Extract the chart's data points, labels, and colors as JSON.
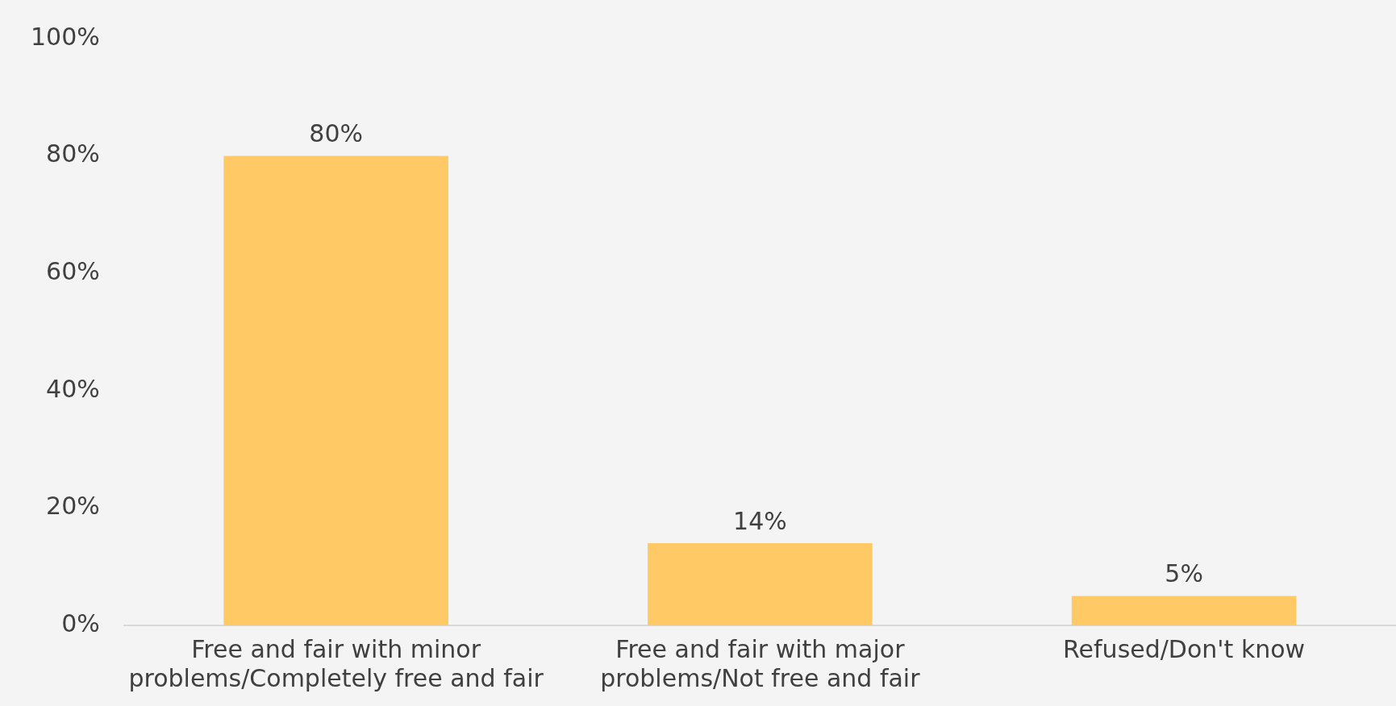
{
  "chart_data": {
    "type": "bar",
    "categories": [
      "Free and fair with minor problems/Completely free and fair",
      "Free and fair with major problems/Not free and fair",
      "Refused/Don't know"
    ],
    "values": [
      80,
      14,
      5
    ],
    "value_labels": [
      "80%",
      "14%",
      "5%"
    ],
    "color": "#ffca66",
    "ylim": [
      0,
      100
    ],
    "yticks": [
      {
        "value": 0,
        "label": "0%"
      },
      {
        "value": 20,
        "label": "20%"
      },
      {
        "value": 40,
        "label": "40%"
      },
      {
        "value": 60,
        "label": "60%"
      },
      {
        "value": 80,
        "label": "80%"
      },
      {
        "value": 100,
        "label": "100%"
      }
    ],
    "grid": false,
    "legend": false
  }
}
